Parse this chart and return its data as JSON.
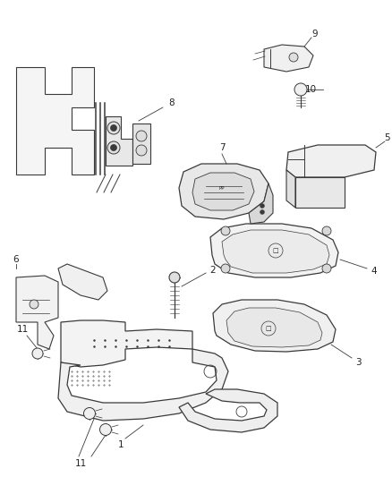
{
  "background_color": "#ffffff",
  "line_color": "#3a3a3a",
  "fig_width": 4.38,
  "fig_height": 5.33,
  "dpi": 100
}
